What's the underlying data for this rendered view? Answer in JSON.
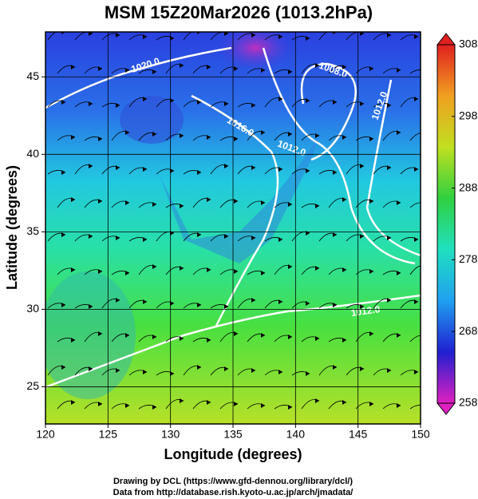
{
  "chart_data": {
    "type": "map",
    "title": "MSM 15Z20Mar2026 (1013.2hPa)",
    "xlabel": "Longitude (degrees)",
    "ylabel": "Latitude  (degrees)",
    "xlim": [
      120,
      150
    ],
    "ylim": [
      22.6,
      47.9
    ],
    "xticks": [
      120,
      125,
      130,
      135,
      140,
      145,
      150
    ],
    "yticks": [
      25,
      30,
      35,
      40,
      45
    ],
    "grid": true,
    "colorbar": {
      "lim": [
        258,
        308
      ],
      "ticks": [
        258,
        268,
        278,
        288,
        298,
        308
      ],
      "colors": [
        "#e020c0",
        "#2020d0",
        "#20a0f0",
        "#20e0c0",
        "#30d040",
        "#c0e020",
        "#f0a020",
        "#e02020"
      ]
    },
    "contour_labels": [
      "1020.0",
      "1008.0",
      "1016.0",
      "1012.0",
      "1012.0",
      "1012.0"
    ],
    "credits": [
      "Drawing by DCL (https://www.gfd-dennou.org/library/dcl/)",
      "Data from http://database.rish.kyoto-u.ac.jp/arch/jmadata/"
    ]
  }
}
